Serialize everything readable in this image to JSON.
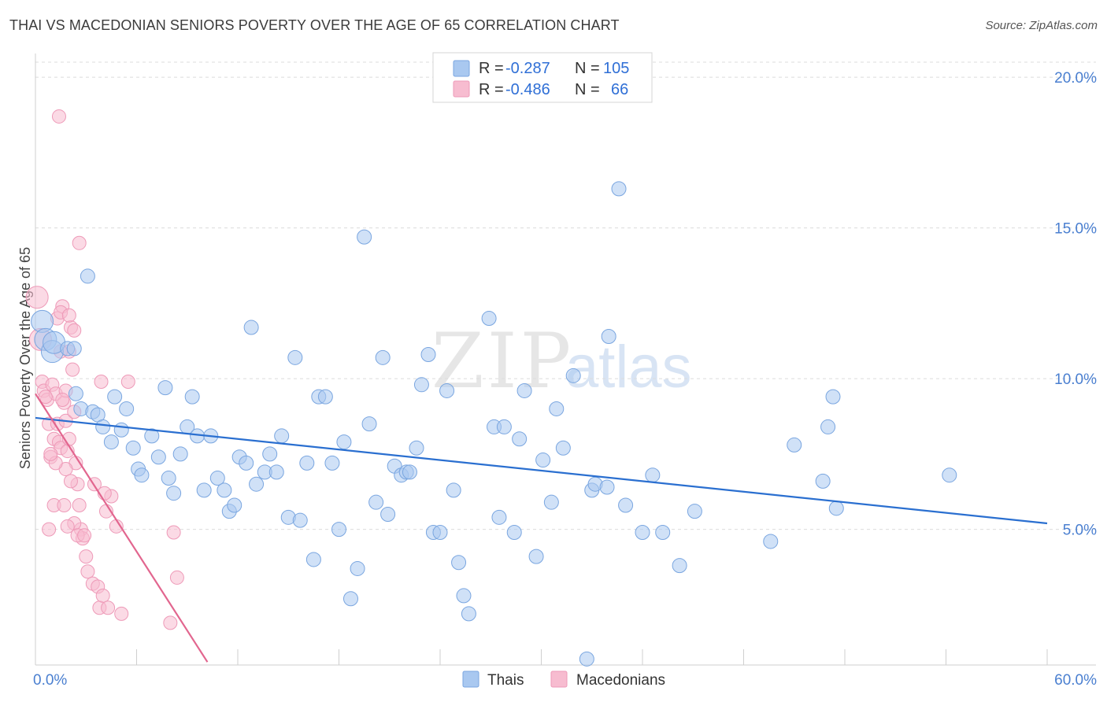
{
  "title": "THAI VS MACEDONIAN SENIORS POVERTY OVER THE AGE OF 65 CORRELATION CHART",
  "source": "Source: ZipAtlas.com",
  "watermark": {
    "zip": "ZIP",
    "atlas": "atlas"
  },
  "legend_top": [
    {
      "r_label": "R =",
      "r_value": "-0.287",
      "n_label": "N =",
      "n_value": "105"
    },
    {
      "r_label": "R =",
      "r_value": "-0.486",
      "n_label": "N =",
      "n_value": "66"
    }
  ],
  "colors": {
    "thais_fill": "#a9c8f0",
    "thais_stroke": "#7aa6e0",
    "thais_line": "#2a6fd0",
    "mac_fill": "#f7bcd0",
    "mac_stroke": "#ee9ab8",
    "mac_line": "#e2668f",
    "tick_text": "#4a7fd0",
    "grid": "#dcdcdc"
  },
  "chart_data": {
    "type": "scatter",
    "xlabel": "",
    "ylabel": "Seniors Poverty Over the Age of 65",
    "xlim": [
      0,
      60
    ],
    "ylim": [
      0.5,
      20.5
    ],
    "x_tick_labels": [
      "0.0%",
      "60.0%"
    ],
    "y_tick_labels": [
      "5.0%",
      "10.0%",
      "15.0%",
      "20.0%"
    ],
    "y_ticks": [
      5,
      10,
      15,
      20
    ],
    "grid": true,
    "legend_placement": "top-center",
    "series": [
      {
        "name": "Thais",
        "trend": [
          [
            0,
            8.7
          ],
          [
            60,
            5.2
          ]
        ],
        "points": [
          [
            0.4,
            11.9,
            1
          ],
          [
            0.6,
            11.3,
            1
          ],
          [
            1.0,
            10.9,
            1
          ],
          [
            1.1,
            11.2,
            1
          ],
          [
            1.9,
            11.0,
            0
          ],
          [
            3.1,
            13.4,
            0
          ],
          [
            2.4,
            9.5,
            0
          ],
          [
            2.7,
            9.0,
            0
          ],
          [
            3.4,
            8.9,
            0
          ],
          [
            3.7,
            8.8,
            0
          ],
          [
            4.0,
            8.4,
            0
          ],
          [
            4.5,
            7.9,
            0
          ],
          [
            4.7,
            9.4,
            0
          ],
          [
            5.1,
            8.3,
            0
          ],
          [
            5.4,
            9.0,
            0
          ],
          [
            5.8,
            7.7,
            0
          ],
          [
            6.1,
            7.0,
            0
          ],
          [
            6.3,
            6.8,
            0
          ],
          [
            6.9,
            8.1,
            0
          ],
          [
            7.3,
            7.4,
            0
          ],
          [
            7.7,
            9.7,
            0
          ],
          [
            7.9,
            6.7,
            0
          ],
          [
            8.2,
            6.2,
            0
          ],
          [
            8.6,
            7.5,
            0
          ],
          [
            9.0,
            8.4,
            0
          ],
          [
            9.3,
            9.4,
            0
          ],
          [
            9.6,
            8.1,
            0
          ],
          [
            10.0,
            6.3,
            0
          ],
          [
            10.4,
            8.1,
            0
          ],
          [
            10.8,
            6.7,
            0
          ],
          [
            11.2,
            6.3,
            0
          ],
          [
            11.5,
            5.6,
            0
          ],
          [
            11.8,
            5.8,
            0
          ],
          [
            12.1,
            7.4,
            0
          ],
          [
            12.5,
            7.2,
            0
          ],
          [
            12.8,
            11.7,
            0
          ],
          [
            13.1,
            6.5,
            0
          ],
          [
            13.6,
            6.9,
            0
          ],
          [
            13.9,
            7.5,
            0
          ],
          [
            14.3,
            6.9,
            0
          ],
          [
            14.6,
            8.1,
            0
          ],
          [
            15.0,
            5.4,
            0
          ],
          [
            15.4,
            10.7,
            0
          ],
          [
            15.7,
            5.3,
            0
          ],
          [
            16.1,
            7.2,
            0
          ],
          [
            16.5,
            4.0,
            0
          ],
          [
            16.8,
            9.4,
            0
          ],
          [
            17.2,
            9.4,
            0
          ],
          [
            17.6,
            7.2,
            0
          ],
          [
            18.0,
            5.0,
            0
          ],
          [
            18.3,
            7.9,
            0
          ],
          [
            18.7,
            2.7,
            0
          ],
          [
            19.1,
            3.7,
            0
          ],
          [
            19.5,
            14.7,
            0
          ],
          [
            19.8,
            8.5,
            0
          ],
          [
            20.2,
            5.9,
            0
          ],
          [
            20.6,
            10.7,
            0
          ],
          [
            20.9,
            5.5,
            0
          ],
          [
            21.3,
            7.1,
            0
          ],
          [
            21.7,
            6.8,
            0
          ],
          [
            22.0,
            6.9,
            0
          ],
          [
            22.2,
            6.9,
            0
          ],
          [
            22.6,
            7.7,
            0
          ],
          [
            22.9,
            9.8,
            0
          ],
          [
            23.3,
            10.8,
            0
          ],
          [
            23.6,
            4.9,
            0
          ],
          [
            24.0,
            4.9,
            0
          ],
          [
            24.4,
            9.6,
            0
          ],
          [
            24.8,
            6.3,
            0
          ],
          [
            25.1,
            3.9,
            0
          ],
          [
            25.4,
            2.8,
            0
          ],
          [
            25.7,
            2.2,
            0
          ],
          [
            26.9,
            12.0,
            0
          ],
          [
            27.2,
            8.4,
            0
          ],
          [
            27.5,
            5.4,
            0
          ],
          [
            27.8,
            8.4,
            0
          ],
          [
            28.4,
            4.9,
            0
          ],
          [
            28.7,
            8.0,
            0
          ],
          [
            29.0,
            9.6,
            0
          ],
          [
            29.7,
            4.1,
            0
          ],
          [
            30.1,
            7.3,
            0
          ],
          [
            30.6,
            5.9,
            0
          ],
          [
            30.9,
            9.0,
            0
          ],
          [
            31.3,
            7.7,
            0
          ],
          [
            31.9,
            10.1,
            0
          ],
          [
            32.7,
            0.7,
            0
          ],
          [
            33.0,
            6.3,
            0
          ],
          [
            33.2,
            6.5,
            0
          ],
          [
            33.9,
            6.4,
            0
          ],
          [
            34.0,
            11.4,
            0
          ],
          [
            34.6,
            16.3,
            0
          ],
          [
            35.0,
            5.8,
            0
          ],
          [
            36.0,
            4.9,
            0
          ],
          [
            36.6,
            6.8,
            0
          ],
          [
            37.2,
            4.9,
            0
          ],
          [
            38.2,
            3.8,
            0
          ],
          [
            39.1,
            5.6,
            0
          ],
          [
            43.6,
            4.6,
            0
          ],
          [
            45.0,
            7.8,
            0
          ],
          [
            46.7,
            6.6,
            0
          ],
          [
            47.0,
            8.4,
            0
          ],
          [
            47.3,
            9.4,
            0
          ],
          [
            47.5,
            5.7,
            0
          ],
          [
            54.2,
            6.8,
            0
          ],
          [
            2.3,
            11.0,
            0
          ]
        ]
      },
      {
        "name": "Macedonians",
        "trend": [
          [
            0,
            9.5
          ],
          [
            10.2,
            0.6
          ]
        ],
        "points": [
          [
            0.1,
            12.7,
            1
          ],
          [
            0.3,
            11.3,
            1
          ],
          [
            0.4,
            9.9,
            0
          ],
          [
            0.5,
            9.6,
            0
          ],
          [
            0.7,
            9.3,
            0
          ],
          [
            0.8,
            8.5,
            0
          ],
          [
            0.9,
            7.4,
            0
          ],
          [
            1.0,
            9.8,
            0
          ],
          [
            1.1,
            8.0,
            0
          ],
          [
            1.2,
            9.5,
            0
          ],
          [
            1.3,
            8.5,
            0
          ],
          [
            1.4,
            7.9,
            0
          ],
          [
            1.5,
            7.7,
            0
          ],
          [
            1.6,
            12.4,
            0
          ],
          [
            1.7,
            9.2,
            0
          ],
          [
            1.8,
            8.6,
            0
          ],
          [
            1.9,
            7.6,
            0
          ],
          [
            2.0,
            10.9,
            0
          ],
          [
            2.1,
            11.7,
            0
          ],
          [
            2.2,
            10.3,
            0
          ],
          [
            2.3,
            8.9,
            0
          ],
          [
            2.4,
            7.2,
            0
          ],
          [
            2.5,
            6.5,
            0
          ],
          [
            2.6,
            5.8,
            0
          ],
          [
            2.7,
            5.0,
            0
          ],
          [
            2.8,
            4.7,
            0
          ],
          [
            1.3,
            12.0,
            0
          ],
          [
            1.5,
            12.2,
            0
          ],
          [
            1.8,
            9.6,
            0
          ],
          [
            1.4,
            18.7,
            0
          ],
          [
            2.0,
            12.1,
            0
          ],
          [
            2.3,
            11.6,
            0
          ],
          [
            2.6,
            14.5,
            0
          ],
          [
            1.8,
            7.0,
            0
          ],
          [
            2.1,
            6.6,
            0
          ],
          [
            2.3,
            5.2,
            0
          ],
          [
            2.5,
            4.8,
            0
          ],
          [
            2.9,
            4.8,
            0
          ],
          [
            3.0,
            4.1,
            0
          ],
          [
            3.1,
            3.6,
            0
          ],
          [
            3.4,
            3.2,
            0
          ],
          [
            3.7,
            3.1,
            0
          ],
          [
            3.8,
            2.4,
            0
          ],
          [
            4.0,
            2.8,
            0
          ],
          [
            4.2,
            5.6,
            0
          ],
          [
            4.3,
            2.4,
            0
          ],
          [
            4.5,
            6.1,
            0
          ],
          [
            4.8,
            5.1,
            0
          ],
          [
            5.1,
            2.2,
            0
          ],
          [
            5.5,
            9.9,
            0
          ],
          [
            3.5,
            6.5,
            0
          ],
          [
            3.9,
            9.9,
            0
          ],
          [
            4.1,
            6.2,
            0
          ],
          [
            8.0,
            1.9,
            0
          ],
          [
            8.2,
            4.9,
            0
          ],
          [
            8.4,
            3.4,
            0
          ],
          [
            1.6,
            9.3,
            0
          ],
          [
            1.2,
            7.2,
            0
          ],
          [
            0.9,
            7.5,
            0
          ],
          [
            1.1,
            5.8,
            0
          ],
          [
            1.7,
            5.8,
            0
          ],
          [
            0.8,
            5.0,
            0
          ],
          [
            2.0,
            8.0,
            0
          ],
          [
            1.5,
            10.9,
            0
          ],
          [
            1.9,
            5.1,
            0
          ],
          [
            0.6,
            9.4,
            0
          ]
        ]
      }
    ]
  },
  "legend_bottom": [
    {
      "label": "Thais"
    },
    {
      "label": "Macedonians"
    }
  ]
}
